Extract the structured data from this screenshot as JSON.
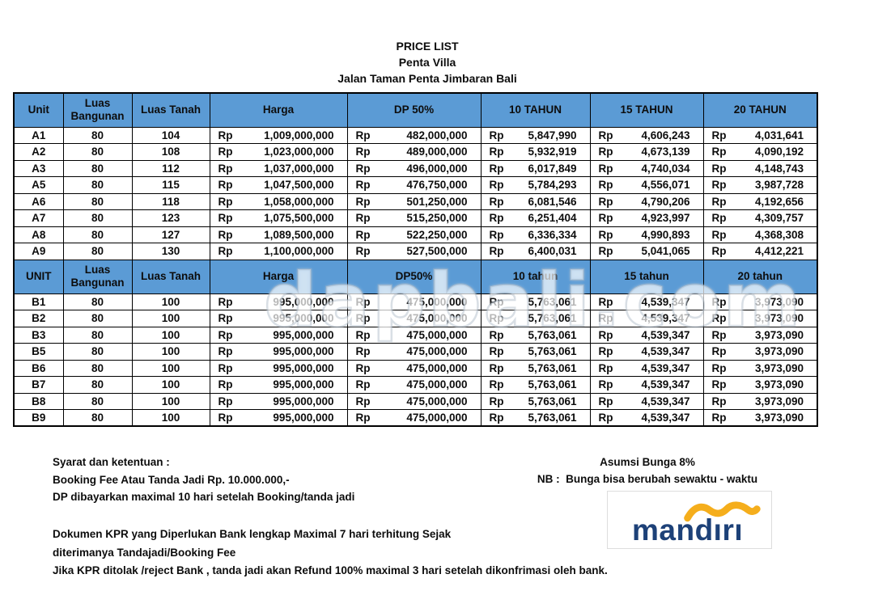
{
  "page_title": {
    "line1": "PRICE LIST",
    "line2": "Penta Villa",
    "line3": "Jalan Taman Penta Jimbaran Bali"
  },
  "price_table": {
    "currency": "Rp",
    "section_a": {
      "headers": [
        "Unit",
        "Luas Bangunan",
        "Luas Tanah",
        "Harga",
        "DP 50%",
        "10 TAHUN",
        "15 TAHUN",
        "20 TAHUN"
      ],
      "rows": [
        {
          "unit": "A1",
          "luas_bangunan": "80",
          "luas_tanah": "104",
          "harga": "1,009,000,000",
          "dp": "482,000,000",
          "tahun_10": "5,847,990",
          "tahun_15": "4,606,243",
          "tahun_20": "4,031,641"
        },
        {
          "unit": "A2",
          "luas_bangunan": "80",
          "luas_tanah": "108",
          "harga": "1,023,000,000",
          "dp": "489,000,000",
          "tahun_10": "5,932,919",
          "tahun_15": "4,673,139",
          "tahun_20": "4,090,192"
        },
        {
          "unit": "A3",
          "luas_bangunan": "80",
          "luas_tanah": "112",
          "harga": "1,037,000,000",
          "dp": "496,000,000",
          "tahun_10": "6,017,849",
          "tahun_15": "4,740,034",
          "tahun_20": "4,148,743"
        },
        {
          "unit": "A5",
          "luas_bangunan": "80",
          "luas_tanah": "115",
          "harga": "1,047,500,000",
          "dp": "476,750,000",
          "tahun_10": "5,784,293",
          "tahun_15": "4,556,071",
          "tahun_20": "3,987,728"
        },
        {
          "unit": "A6",
          "luas_bangunan": "80",
          "luas_tanah": "118",
          "harga": "1,058,000,000",
          "dp": "501,250,000",
          "tahun_10": "6,081,546",
          "tahun_15": "4,790,206",
          "tahun_20": "4,192,656"
        },
        {
          "unit": "A7",
          "luas_bangunan": "80",
          "luas_tanah": "123",
          "harga": "1,075,500,000",
          "dp": "515,250,000",
          "tahun_10": "6,251,404",
          "tahun_15": "4,923,997",
          "tahun_20": "4,309,757"
        },
        {
          "unit": "A8",
          "luas_bangunan": "80",
          "luas_tanah": "127",
          "harga": "1,089,500,000",
          "dp": "522,250,000",
          "tahun_10": "6,336,334",
          "tahun_15": "4,990,893",
          "tahun_20": "4,368,308"
        },
        {
          "unit": "A9",
          "luas_bangunan": "80",
          "luas_tanah": "130",
          "harga": "1,100,000,000",
          "dp": "527,500,000",
          "tahun_10": "6,400,031",
          "tahun_15": "5,041,065",
          "tahun_20": "4,412,221"
        }
      ]
    },
    "section_b": {
      "headers": [
        "UNIT",
        "Luas Bangunan",
        "Luas Tanah",
        "Harga",
        "DP50%",
        "10 tahun",
        "15 tahun",
        "20 tahun"
      ],
      "rows": [
        {
          "unit": "B1",
          "luas_bangunan": "80",
          "luas_tanah": "100",
          "harga": "995,000,000",
          "dp": "475,000,000",
          "tahun_10": "5,763,061",
          "tahun_15": "4,539,347",
          "tahun_20": "3,973,090"
        },
        {
          "unit": "B2",
          "luas_bangunan": "80",
          "luas_tanah": "100",
          "harga": "995,000,000",
          "dp": "475,000,000",
          "tahun_10": "5,763,061",
          "tahun_15": "4,539,347",
          "tahun_20": "3,973,090"
        },
        {
          "unit": "B3",
          "luas_bangunan": "80",
          "luas_tanah": "100",
          "harga": "995,000,000",
          "dp": "475,000,000",
          "tahun_10": "5,763,061",
          "tahun_15": "4,539,347",
          "tahun_20": "3,973,090"
        },
        {
          "unit": "B5",
          "luas_bangunan": "80",
          "luas_tanah": "100",
          "harga": "995,000,000",
          "dp": "475,000,000",
          "tahun_10": "5,763,061",
          "tahun_15": "4,539,347",
          "tahun_20": "3,973,090"
        },
        {
          "unit": "B6",
          "luas_bangunan": "80",
          "luas_tanah": "100",
          "harga": "995,000,000",
          "dp": "475,000,000",
          "tahun_10": "5,763,061",
          "tahun_15": "4,539,347",
          "tahun_20": "3,973,090"
        },
        {
          "unit": "B7",
          "luas_bangunan": "80",
          "luas_tanah": "100",
          "harga": "995,000,000",
          "dp": "475,000,000",
          "tahun_10": "5,763,061",
          "tahun_15": "4,539,347",
          "tahun_20": "3,973,090"
        },
        {
          "unit": "B8",
          "luas_bangunan": "80",
          "luas_tanah": "100",
          "harga": "995,000,000",
          "dp": "475,000,000",
          "tahun_10": "5,763,061",
          "tahun_15": "4,539,347",
          "tahun_20": "3,973,090"
        },
        {
          "unit": "B9",
          "luas_bangunan": "80",
          "luas_tanah": "100",
          "harga": "995,000,000",
          "dp": "475,000,000",
          "tahun_10": "5,763,061",
          "tahun_15": "4,539,347",
          "tahun_20": "3,973,090"
        }
      ]
    }
  },
  "terms_left": {
    "line1": "Syarat dan ketentuan :",
    "line2": "Booking Fee Atau Tanda Jadi Rp. 10.000.000,-",
    "line3": "DP dibayarkan maximal 10 hari setelah Booking/tanda jadi"
  },
  "terms_right": {
    "line1": "Asumsi Bunga 8%",
    "line2": "NB :  Bunga bisa berubah sewaktu - waktu"
  },
  "kpr_notes": {
    "line1": "Dokumen KPR yang Diperlukan Bank lengkap Maximal 7 hari terhitung Sejak",
    "line2": "diterimanya Tandajadi/Booking Fee",
    "line3": "Jika KPR ditolak /reject Bank , tanda jadi akan Refund 100% maximal 3 hari setelah dikonfrimasi oleh bank."
  },
  "watermark": "dapbali.com",
  "bank_logo": {
    "text": "mandırı"
  },
  "colors": {
    "header_blue": "#5B9BD5",
    "logo_blue": "#1D4178",
    "logo_gold": "#F5AE1C"
  }
}
